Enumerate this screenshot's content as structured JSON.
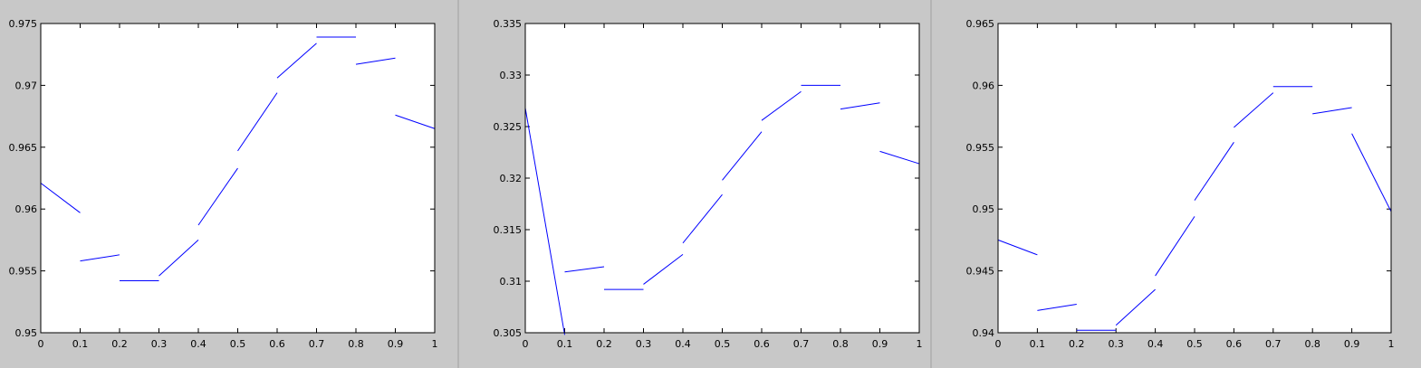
{
  "chart_data": [
    {
      "type": "line",
      "xlim": [
        0,
        1
      ],
      "ylim": [
        0.95,
        0.975
      ],
      "xticks": [
        "0",
        "0.1",
        "0.2",
        "0.3",
        "0.4",
        "0.5",
        "0.6",
        "0.7",
        "0.8",
        "0.9",
        "1"
      ],
      "yticks": [
        "0.95",
        "0.955",
        "0.96",
        "0.965",
        "0.97",
        "0.975"
      ],
      "grid": false,
      "series": [
        {
          "color": "#0000ff",
          "segments": [
            [
              [
                0.0,
                0.9621
              ],
              [
                0.1,
                0.9597
              ]
            ],
            [
              [
                0.1,
                0.9558
              ],
              [
                0.2,
                0.9563
              ]
            ],
            [
              [
                0.2,
                0.9542
              ],
              [
                0.3,
                0.9542
              ]
            ],
            [
              [
                0.3,
                0.9546
              ],
              [
                0.4,
                0.9575
              ]
            ],
            [
              [
                0.4,
                0.9587
              ],
              [
                0.5,
                0.9633
              ]
            ],
            [
              [
                0.5,
                0.9647
              ],
              [
                0.6,
                0.9694
              ]
            ],
            [
              [
                0.6,
                0.9706
              ],
              [
                0.7,
                0.9734
              ]
            ],
            [
              [
                0.7,
                0.9739
              ],
              [
                0.8,
                0.9739
              ]
            ],
            [
              [
                0.8,
                0.9717
              ],
              [
                0.9,
                0.9722
              ]
            ],
            [
              [
                0.9,
                0.9676
              ],
              [
                1.0,
                0.9665
              ]
            ]
          ]
        }
      ]
    },
    {
      "type": "line",
      "xlim": [
        0,
        1
      ],
      "ylim": [
        0.305,
        0.335
      ],
      "xticks": [
        "0",
        "0.1",
        "0.2",
        "0.3",
        "0.4",
        "0.5",
        "0.6",
        "0.7",
        "0.8",
        "0.9",
        "1"
      ],
      "yticks": [
        "0.305",
        "0.31",
        "0.315",
        "0.32",
        "0.325",
        "0.33",
        "0.335"
      ],
      "grid": false,
      "series": [
        {
          "color": "#0000ff",
          "segments": [
            [
              [
                0.0,
                0.3268
              ],
              [
                0.1,
                0.3048
              ]
            ],
            [
              [
                0.1,
                0.3109
              ],
              [
                0.2,
                0.3114
              ]
            ],
            [
              [
                0.2,
                0.3092
              ],
              [
                0.3,
                0.3092
              ]
            ],
            [
              [
                0.3,
                0.3097
              ],
              [
                0.4,
                0.3126
              ]
            ],
            [
              [
                0.4,
                0.3137
              ],
              [
                0.5,
                0.3184
              ]
            ],
            [
              [
                0.5,
                0.3198
              ],
              [
                0.6,
                0.3245
              ]
            ],
            [
              [
                0.6,
                0.3256
              ],
              [
                0.7,
                0.3284
              ]
            ],
            [
              [
                0.7,
                0.329
              ],
              [
                0.8,
                0.329
              ]
            ],
            [
              [
                0.8,
                0.3267
              ],
              [
                0.9,
                0.3273
              ]
            ],
            [
              [
                0.9,
                0.3226
              ],
              [
                1.0,
                0.3214
              ]
            ]
          ]
        }
      ]
    },
    {
      "type": "line",
      "xlim": [
        0,
        1
      ],
      "ylim": [
        0.94,
        0.965
      ],
      "xticks": [
        "0",
        "0.1",
        "0.2",
        "0.3",
        "0.4",
        "0.5",
        "0.6",
        "0.7",
        "0.8",
        "0.9",
        "1"
      ],
      "yticks": [
        "0.94",
        "0.945",
        "0.95",
        "0.955",
        "0.96",
        "0.965"
      ],
      "grid": false,
      "series": [
        {
          "color": "#0000ff",
          "segments": [
            [
              [
                0.0,
                0.9475
              ],
              [
                0.1,
                0.9463
              ]
            ],
            [
              [
                0.1,
                0.9418
              ],
              [
                0.2,
                0.9423
              ]
            ],
            [
              [
                0.2,
                0.9402
              ],
              [
                0.3,
                0.9402
              ]
            ],
            [
              [
                0.3,
                0.9406
              ],
              [
                0.4,
                0.9435
              ]
            ],
            [
              [
                0.4,
                0.9446
              ],
              [
                0.5,
                0.9494
              ]
            ],
            [
              [
                0.5,
                0.9507
              ],
              [
                0.6,
                0.9554
              ]
            ],
            [
              [
                0.6,
                0.9566
              ],
              [
                0.7,
                0.9594
              ]
            ],
            [
              [
                0.7,
                0.9599
              ],
              [
                0.8,
                0.9599
              ]
            ],
            [
              [
                0.8,
                0.9577
              ],
              [
                0.9,
                0.9582
              ]
            ],
            [
              [
                0.9,
                0.9561
              ],
              [
                1.0,
                0.9498
              ]
            ]
          ]
        }
      ]
    }
  ]
}
